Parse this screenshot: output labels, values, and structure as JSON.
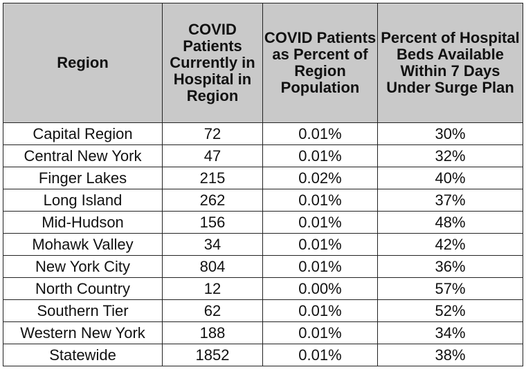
{
  "table": {
    "headers": [
      "Region",
      "COVID Patients Currently in Hospital in Region",
      "COVID Patients as Percent of Region Population",
      "Percent of Hospital Beds Available Within 7 Days Under Surge Plan"
    ],
    "rows": [
      [
        "Capital Region",
        "72",
        "0.01%",
        "30%"
      ],
      [
        "Central New York",
        "47",
        "0.01%",
        "32%"
      ],
      [
        "Finger Lakes",
        "215",
        "0.02%",
        "40%"
      ],
      [
        "Long Island",
        "262",
        "0.01%",
        "37%"
      ],
      [
        "Mid-Hudson",
        "156",
        "0.01%",
        "48%"
      ],
      [
        "Mohawk Valley",
        "34",
        "0.01%",
        "42%"
      ],
      [
        "New York City",
        "804",
        "0.01%",
        "36%"
      ],
      [
        "North Country",
        "12",
        "0.00%",
        "57%"
      ],
      [
        "Southern Tier",
        "62",
        "0.01%",
        "52%"
      ],
      [
        "Western New York",
        "188",
        "0.01%",
        "34%"
      ],
      [
        "Statewide",
        "1852",
        "0.01%",
        "38%"
      ]
    ]
  },
  "colors": {
    "header_background": "#c9c9c9",
    "border": "#222222",
    "text": "#111111"
  }
}
